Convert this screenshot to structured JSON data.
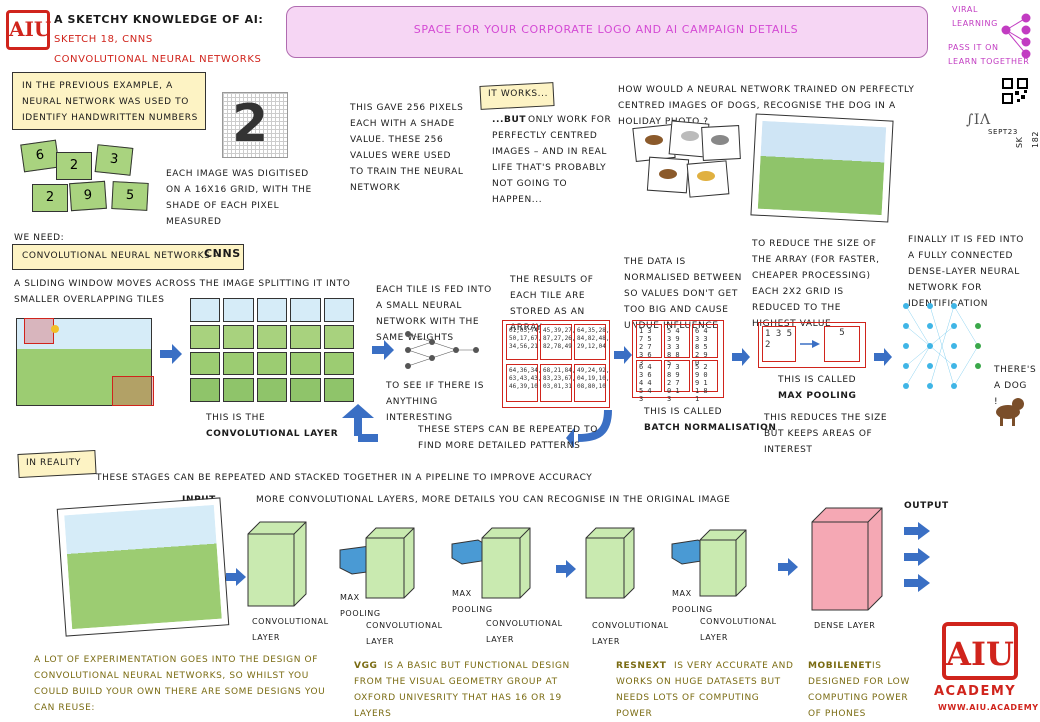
{
  "header": {
    "title": "A SKETCHY KNOWLEDGE OF AI:",
    "sketch": "SKETCH 18, CNNs",
    "subtitle": "CONVOLUTIONAL NEURAL NETWORKS",
    "banner": "SPACE FOR YOUR CORPORATE LOGO AND AI CAMPAIGN DETAILS",
    "viral_1": "VIRAL",
    "viral_2": "LEARNING",
    "viral_3": "PASS IT ON",
    "viral_4": "LEARN TOGETHER",
    "date": "SEPT23",
    "ref": "SK 182"
  },
  "intro": {
    "previous": "IN THE PREVIOUS EXAMPLE, A NEURAL NETWORK WAS USED TO IDENTIFY HANDWRITTEN NUMBERS",
    "cards": [
      "6",
      "2",
      "3",
      "2",
      "9",
      "5"
    ],
    "digit": "2",
    "digitised": "EACH IMAGE WAS DIGITISED ON A 16X16 GRID, WITH THE SHADE OF EACH PIXEL MEASURED",
    "pixels": "THIS GAVE 256 PIXELS EACH WITH A SHADE VALUE. THESE 256 VALUES WERE USED TO TRAIN THE NEURAL NETWORK",
    "it_works": "IT WORKS...",
    "but": "...BUT",
    "but_rest": "ONLY WORK FOR PERFECTLY CENTRED IMAGES – AND IN REAL LIFE THAT'S PROBABLY NOT GOING TO HAPPEN...",
    "question": "HOW WOULD A NEURAL NETWORK TRAINED ON PERFECTLY CENTRED IMAGES OF DOGS, RECOGNISE THE DOG IN A HOLIDAY PHOTO ?"
  },
  "cnn": {
    "we_need": "WE NEED:",
    "cnn_label": "CONVOLUTIONAL NEURAL NETWORKS –",
    "cnn_abbr": "CNNs",
    "sliding": "A SLIDING WINDOW MOVES ACROSS THE IMAGE SPLITTING IT INTO SMALLER OVERLAPPING TILES",
    "conv_layer_pre": "THIS IS THE",
    "conv_layer": "CONVOLUTIONAL LAYER",
    "tile_fed": "EACH TILE IS FED INTO A SMALL NEURAL NETWORK WITH THE SAME WEIGHTS",
    "interesting": "TO SEE IF THERE IS ANYTHING INTERESTING",
    "results": "THE RESULTS OF EACH TILE ARE STORED AS AN ARRAY",
    "array_values": [
      "01,03,74, 50,17,67, 34,56,21",
      "45,39,27, 87,27,26, 82,78,49",
      "64,35,28, 84,82,48, 29,12,04",
      "64,36,34, 63,43,43, 46,39,10",
      "68,21,84, 83,23,67, 03,01,31",
      "49,24,92, 04,19,10, 08,80,10"
    ],
    "normalised": "THE DATA IS NORMALISED BETWEEN SO VALUES DON'T GET TOO BIG AND CAUSE UNDUE INFLUENCE",
    "norm_values": [
      "1 3 7  5 2 7  3 6 3",
      "5 4 3  9 3 3  8 8 5",
      "6 4 3  3 8 5  2 9 0",
      "6 4 3  6 4 4  5 4 3",
      "7 3 8  9 2 7  0 1 3",
      "5 2 9  0 9 1  1 8 1"
    ],
    "batch_pre": "THIS IS CALLED",
    "batch": "BATCH NORMALISATION",
    "reduce": "TO REDUCE THE SIZE OF THE ARRAY (FOR FASTER, CHEAPER PROCESSING) EACH 2X2 GRID IS REDUCED TO THE HIGHEST VALUE",
    "pool_in": "1 3  5 2",
    "pool_out": "5",
    "maxpool_pre": "THIS IS CALLED",
    "maxpool": "MAX POOLING",
    "keeps": "THIS REDUCES THE SIZE BUT KEEPS AREAS OF INTEREST",
    "finally": "FINALLY IT IS FED INTO A FULLY CONNECTED DENSE-LAYER NEURAL NETWORK FOR IDENTIFICATION",
    "dog": "THERE'S A DOG !",
    "repeat": "THESE STEPS CAN BE REPEATED TO FIND MORE DETAILED PATTERNS"
  },
  "reality": {
    "label": "IN REALITY",
    "stacked": "THESE STAGES CAN BE REPEATED AND STACKED TOGETHER IN A PIPELINE TO IMPROVE ACCURACY",
    "input": "INPUT",
    "more_layers": "MORE CONVOLUTIONAL LAYERS, MORE DETAILS YOU CAN RECOGNISE IN THE ORIGINAL IMAGE",
    "output": "OUTPUT",
    "conv": "CONVOLUTIONAL LAYER",
    "maxpool": "MAX POOLING",
    "dense": "DENSE LAYER"
  },
  "footer": {
    "experiment": "A LOT OF EXPERIMENTATION GOES INTO THE DESIGN OF CONVOLUTIONAL NEURAL NETWORKS, SO WHILST YOU COULD BUILD YOUR OWN THERE ARE SOME DESIGNS YOU CAN REUSE:",
    "vgg_name": "VGG",
    "vgg": "IS A BASIC BUT FUNCTIONAL DESIGN FROM THE VISUAL GEOMETRY GROUP AT OXFORD UNIVESRITY THAT HAS 16 OR 19 LAYERS",
    "resnext_name": "RESNEXT",
    "resnext": "IS VERY ACCURATE AND WORKS ON HUGE DATASETS BUT NEEDS LOTS OF COMPUTING POWER",
    "mobilenet_name": "MOBILENET",
    "mobilenet": "IS DESIGNED FOR LOW COMPUTING POWER OF PHONES",
    "logo": "AIU",
    "academy": "ACADEMY",
    "url": "WWW.AIU.ACADEMY"
  },
  "colors": {
    "accent": "#d0241c",
    "layer": "#c9eab0",
    "dense": "#f5a8b4",
    "arrow": "#3a6fc4",
    "pool": "#4a9ad4"
  }
}
